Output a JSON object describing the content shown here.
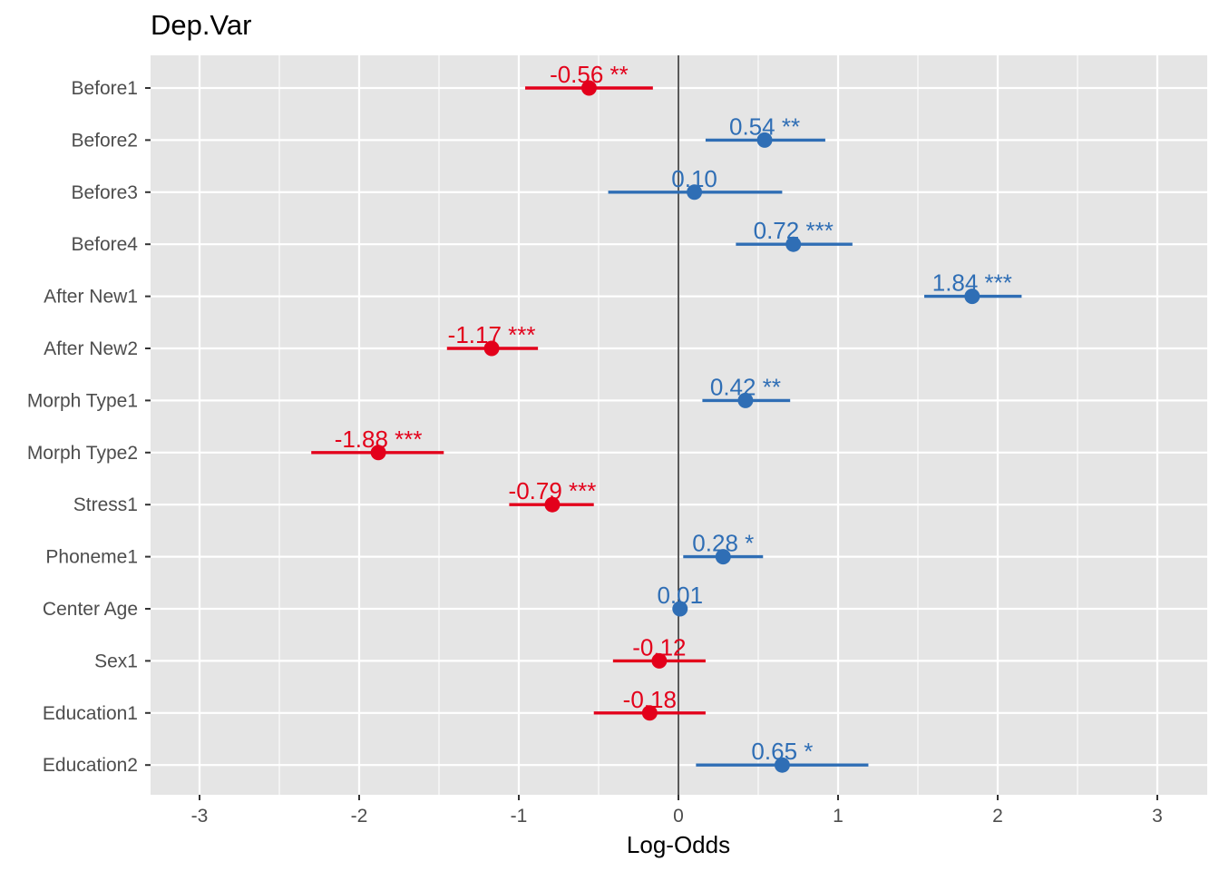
{
  "chart_data": {
    "type": "scatter",
    "title": "Dep.Var",
    "xlabel": "Log-Odds",
    "ylabel": "",
    "xlim": [
      -3.3,
      3.3
    ],
    "xticks": [
      -3,
      -2,
      -1,
      0,
      1,
      2,
      3
    ],
    "xtick_labels": [
      "-3",
      "-2",
      "-1",
      "0",
      "1",
      "2",
      "3"
    ],
    "grid": true,
    "reference_line": 0,
    "colors": {
      "positive": "#2f6eb5",
      "negative": "#e3001b",
      "panel": "#e5e5e5",
      "grid": "#ffffff"
    },
    "terms": [
      {
        "term": "Before1",
        "estimate": -0.56,
        "ci": [
          -0.96,
          -0.16
        ],
        "label": "-0.56 **"
      },
      {
        "term": "Before2",
        "estimate": 0.54,
        "ci": [
          0.17,
          0.92
        ],
        "label": "0.54 **"
      },
      {
        "term": "Before3",
        "estimate": 0.1,
        "ci": [
          -0.44,
          0.65
        ],
        "label": "0.10"
      },
      {
        "term": "Before4",
        "estimate": 0.72,
        "ci": [
          0.36,
          1.09
        ],
        "label": "0.72 ***"
      },
      {
        "term": "After New1",
        "estimate": 1.84,
        "ci": [
          1.54,
          2.15
        ],
        "label": "1.84 ***"
      },
      {
        "term": "After New2",
        "estimate": -1.17,
        "ci": [
          -1.45,
          -0.88
        ],
        "label": "-1.17 ***"
      },
      {
        "term": "Morph Type1",
        "estimate": 0.42,
        "ci": [
          0.15,
          0.7
        ],
        "label": "0.42 **"
      },
      {
        "term": "Morph Type2",
        "estimate": -1.88,
        "ci": [
          -2.3,
          -1.47
        ],
        "label": "-1.88 ***"
      },
      {
        "term": "Stress1",
        "estimate": -0.79,
        "ci": [
          -1.06,
          -0.53
        ],
        "label": "-0.79 ***"
      },
      {
        "term": "Phoneme1",
        "estimate": 0.28,
        "ci": [
          0.03,
          0.53
        ],
        "label": "0.28 *"
      },
      {
        "term": "Center Age",
        "estimate": 0.01,
        "ci": [
          0.0,
          0.02
        ],
        "label": "0.01"
      },
      {
        "term": "Sex1",
        "estimate": -0.12,
        "ci": [
          -0.41,
          0.17
        ],
        "label": "-0.12"
      },
      {
        "term": "Education1",
        "estimate": -0.18,
        "ci": [
          -0.53,
          0.17
        ],
        "label": "-0.18"
      },
      {
        "term": "Education2",
        "estimate": 0.65,
        "ci": [
          0.11,
          1.19
        ],
        "label": "0.65 *"
      }
    ]
  }
}
